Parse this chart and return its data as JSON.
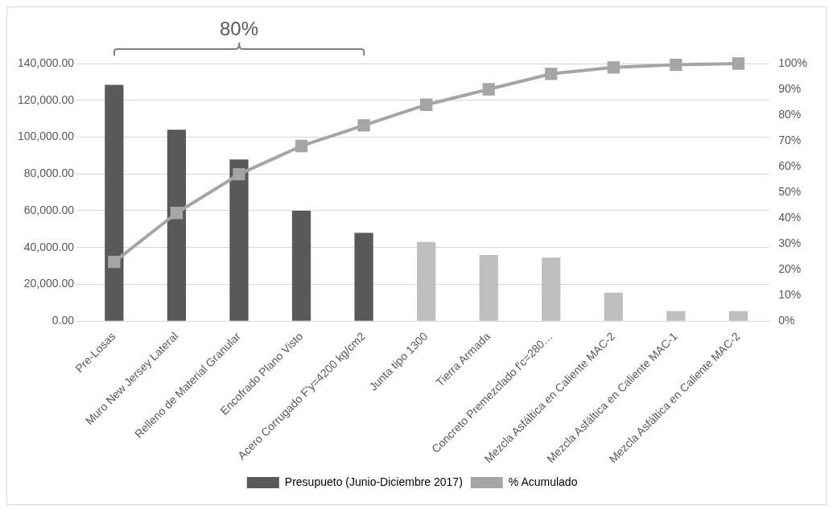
{
  "chart_data": {
    "type": "bar",
    "categories": [
      "Pre-Losas",
      "Muro New Jersey Lateral",
      "Relleno de Material Granular",
      "Encofrado Plano Visto",
      "Acero Corrugado F'y=4200 kg/cm2",
      "Junta tipo 1300",
      "Tierra Armada",
      "Concreto Premezclado f'c=280…",
      "Mezcla Asfáltica en Caliente MAC-2",
      "Mezcla Asfáltica en Caliente MAC-1",
      "Mezcla Asfáltica en Caliente MAC-2"
    ],
    "series": [
      {
        "name": "Presupueto (Junio-Diciembre 2017)",
        "color": "#595959",
        "colors": [
          "#595959",
          "#595959",
          "#595959",
          "#595959",
          "#595959",
          "#bfbfbf",
          "#bfbfbf",
          "#bfbfbf",
          "#bfbfbf",
          "#bfbfbf",
          "#bfbfbf"
        ],
        "values": [
          128400,
          104000,
          87900,
          60000,
          48000,
          43000,
          36000,
          34500,
          15500,
          5500,
          5500
        ]
      },
      {
        "name": "% Acumulado",
        "type": "line",
        "axis": "y2",
        "color": "#a5a5a5",
        "marker": "square",
        "values": [
          23,
          42,
          57,
          68,
          76,
          84,
          90,
          96,
          98.5,
          99.5,
          100
        ]
      }
    ],
    "ylim": [
      0,
      140000
    ],
    "yticks": [
      {
        "value": 0,
        "label": "0.00"
      },
      {
        "value": 20000,
        "label": "20,000.00"
      },
      {
        "value": 40000,
        "label": "40,000.00"
      },
      {
        "value": 60000,
        "label": "60,000.00"
      },
      {
        "value": 80000,
        "label": "80,000.00"
      },
      {
        "value": 100000,
        "label": "100,000.00"
      },
      {
        "value": 120000,
        "label": "120,000.00"
      },
      {
        "value": 140000,
        "label": "140,000.00"
      }
    ],
    "y2lim": [
      0,
      100
    ],
    "y2ticks": [
      {
        "value": 0,
        "label": "0%"
      },
      {
        "value": 10,
        "label": "10%"
      },
      {
        "value": 20,
        "label": "20%"
      },
      {
        "value": 30,
        "label": "30%"
      },
      {
        "value": 40,
        "label": "40%"
      },
      {
        "value": 50,
        "label": "50%"
      },
      {
        "value": 60,
        "label": "60%"
      },
      {
        "value": 70,
        "label": "70%"
      },
      {
        "value": 80,
        "label": "80%"
      },
      {
        "value": 90,
        "label": "90%"
      },
      {
        "value": 100,
        "label": "100%"
      }
    ],
    "annotations": [
      "80%"
    ],
    "grid": "y",
    "legend": "bottom"
  }
}
